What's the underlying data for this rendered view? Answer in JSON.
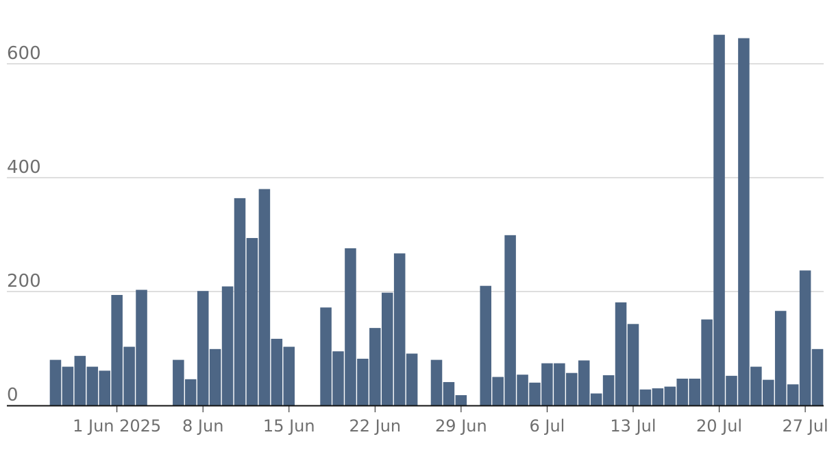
{
  "chart_data": {
    "type": "bar",
    "title": "",
    "xlabel": "",
    "ylabel": "",
    "ylim": [
      0,
      650
    ],
    "grid": true,
    "legend": "none",
    "bar_color": "#4d6685",
    "y_ticks": [
      {
        "value": 0,
        "label": "0"
      },
      {
        "value": 200,
        "label": "200"
      },
      {
        "value": 400,
        "label": "400"
      },
      {
        "value": 600,
        "label": "600"
      }
    ],
    "x_ticks": [
      {
        "date": "2025-06-01",
        "label": "1 Jun 2025"
      },
      {
        "date": "2025-06-08",
        "label": "8 Jun"
      },
      {
        "date": "2025-06-15",
        "label": "15 Jun"
      },
      {
        "date": "2025-06-22",
        "label": "22 Jun"
      },
      {
        "date": "2025-06-29",
        "label": "29 Jun"
      },
      {
        "date": "2025-07-06",
        "label": "6 Jul"
      },
      {
        "date": "2025-07-13",
        "label": "13 Jul"
      },
      {
        "date": "2025-07-20",
        "label": "20 Jul"
      },
      {
        "date": "2025-07-27",
        "label": "27 Jul"
      }
    ],
    "categories": [
      "2025-05-27",
      "2025-05-28",
      "2025-05-29",
      "2025-05-30",
      "2025-05-31",
      "2025-06-01",
      "2025-06-02",
      "2025-06-03",
      "2025-06-04",
      "2025-06-05",
      "2025-06-06",
      "2025-06-07",
      "2025-06-08",
      "2025-06-09",
      "2025-06-10",
      "2025-06-11",
      "2025-06-12",
      "2025-06-13",
      "2025-06-14",
      "2025-06-15",
      "2025-06-16",
      "2025-06-17",
      "2025-06-18",
      "2025-06-19",
      "2025-06-20",
      "2025-06-21",
      "2025-06-22",
      "2025-06-23",
      "2025-06-24",
      "2025-06-25",
      "2025-06-26",
      "2025-06-27",
      "2025-06-28",
      "2025-06-29",
      "2025-06-30",
      "2025-07-01",
      "2025-07-02",
      "2025-07-03",
      "2025-07-04",
      "2025-07-05",
      "2025-07-06",
      "2025-07-07",
      "2025-07-08",
      "2025-07-09",
      "2025-07-10",
      "2025-07-11",
      "2025-07-12",
      "2025-07-13",
      "2025-07-14",
      "2025-07-15",
      "2025-07-16",
      "2025-07-17",
      "2025-07-18",
      "2025-07-19",
      "2025-07-20",
      "2025-07-21",
      "2025-07-22",
      "2025-07-23",
      "2025-07-24",
      "2025-07-25",
      "2025-07-26",
      "2025-07-27",
      "2025-07-28"
    ],
    "values": [
      80,
      68,
      87,
      68,
      61,
      194,
      103,
      203,
      0,
      0,
      80,
      46,
      201,
      99,
      209,
      364,
      294,
      380,
      117,
      103,
      0,
      0,
      172,
      95,
      276,
      82,
      136,
      198,
      267,
      91,
      0,
      80,
      41,
      18,
      0,
      210,
      50,
      299,
      54,
      40,
      74,
      74,
      57,
      79,
      21,
      53,
      181,
      143,
      28,
      30,
      33,
      47,
      47,
      151,
      651,
      52,
      645,
      68,
      45,
      166,
      37,
      237,
      99
    ]
  }
}
